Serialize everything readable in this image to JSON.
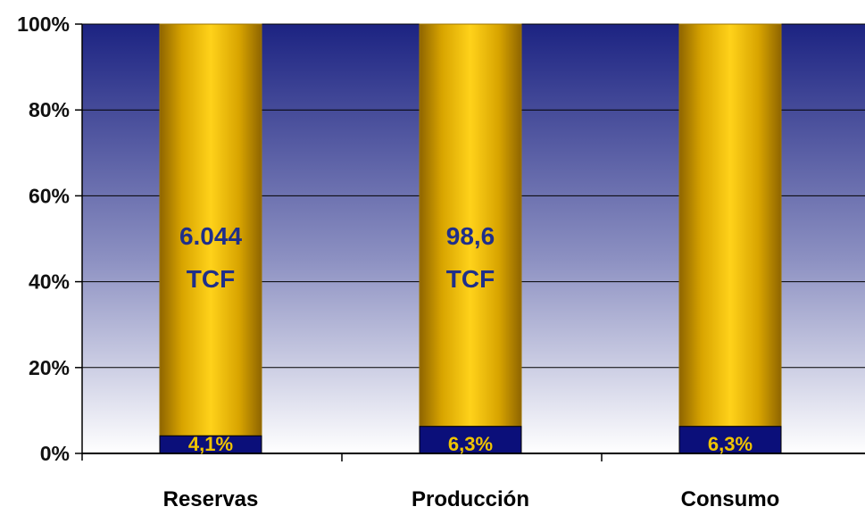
{
  "chart_data": {
    "type": "bar",
    "stacked": true,
    "percent_stacked": true,
    "categories": [
      "Reservas",
      "Producción",
      "Consumo"
    ],
    "series": [
      {
        "values": [
          4.1,
          6.3,
          6.3
        ]
      },
      {
        "values": [
          95.9,
          93.7,
          93.7
        ]
      }
    ],
    "data_labels": [
      "4,1%",
      "6,3%",
      "6,3%"
    ],
    "bar_annotations": [
      {
        "category": "Reservas",
        "lines": [
          "6.044",
          "TCF"
        ]
      },
      {
        "category": "Producción",
        "lines": [
          "98,6",
          "TCF"
        ]
      }
    ],
    "y_ticks": [
      "0%",
      "20%",
      "40%",
      "60%",
      "80%",
      "100%"
    ],
    "ylim": [
      0,
      100
    ],
    "title": "",
    "xlabel": "",
    "ylabel": "",
    "grid": true,
    "legend": "none",
    "colors": {
      "background_top": "#1c2382",
      "background_bottom": "#ffffff",
      "bottom_segment": "#0b0f7a",
      "top_segment": "#f2c100",
      "top_segment_edge": "#9d7400",
      "label_text": "#1f2f8a",
      "pct_text": "#f0c400"
    }
  }
}
